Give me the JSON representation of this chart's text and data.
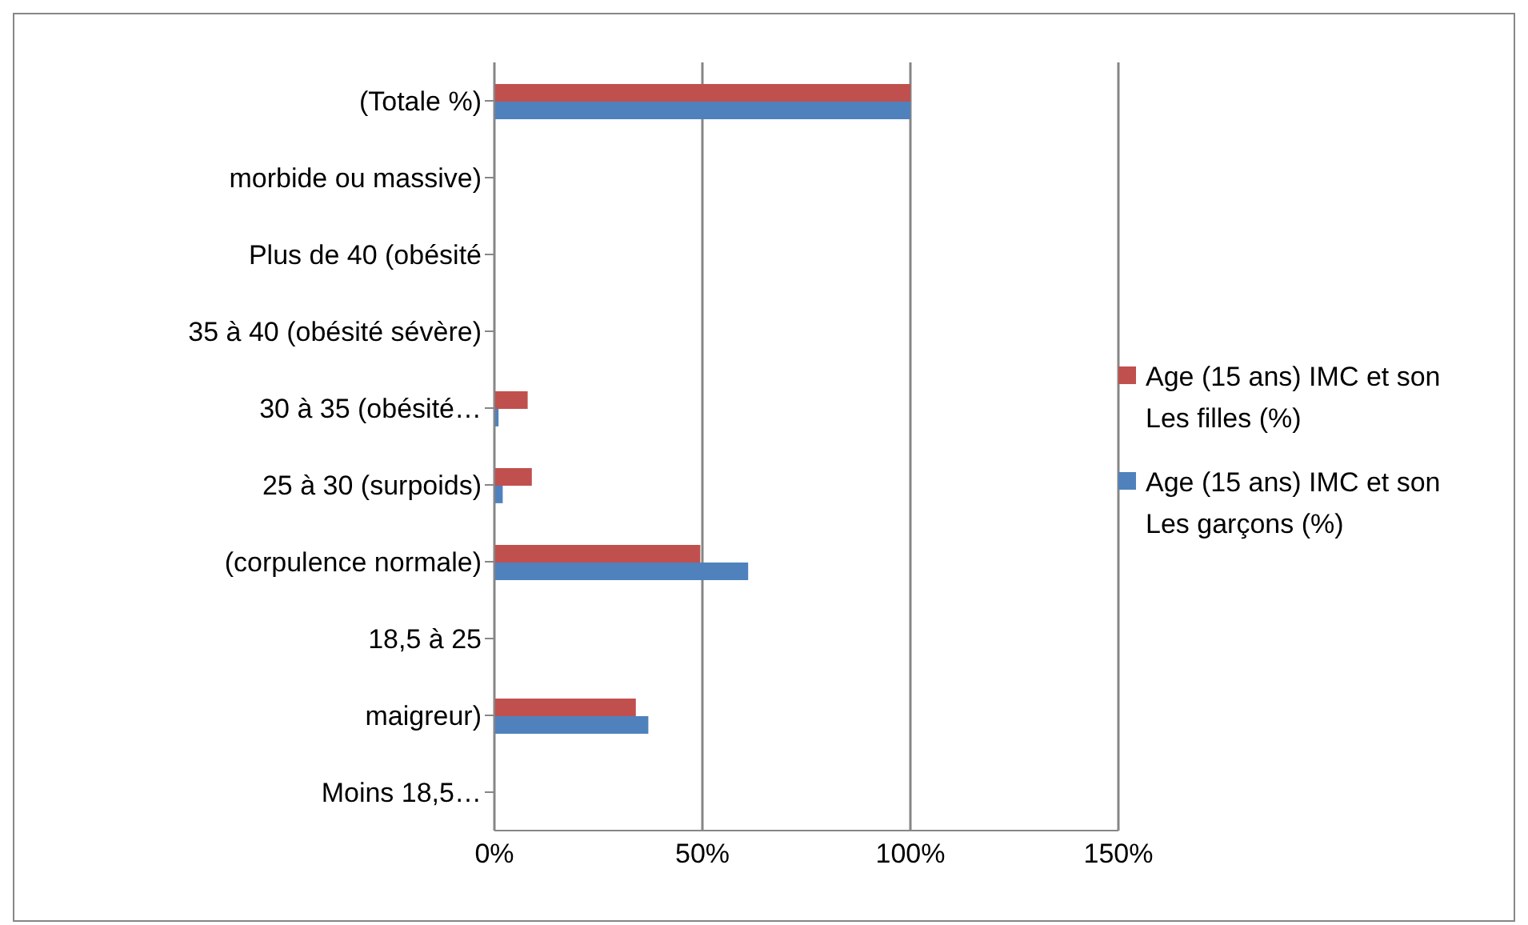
{
  "chart_data": {
    "type": "bar",
    "orientation": "horizontal",
    "categories": [
      "(Totale %)",
      "morbide ou massive)",
      "Plus de 40 (obésité",
      "35 à 40 (obésité sévère)",
      "30 à 35 (obésité…",
      "25 à 30 (surpoids)",
      "(corpulence normale)",
      "18,5 à 25",
      "maigreur)",
      "Moins 18,5…"
    ],
    "series": [
      {
        "name": "Age (15 ans) IMC et son Les filles (%)",
        "color": "#c0504d",
        "values": [
          100,
          null,
          null,
          null,
          8,
          9,
          49.5,
          null,
          34,
          null
        ]
      },
      {
        "name": "Age (15 ans) IMC et son Les garçons (%)",
        "color": "#4f81bd",
        "values": [
          100,
          null,
          null,
          null,
          1,
          2,
          61,
          null,
          37,
          null
        ]
      }
    ],
    "xlim": [
      0,
      150
    ],
    "xticks": [
      {
        "value": 0,
        "label": "0%"
      },
      {
        "value": 50,
        "label": "50%"
      },
      {
        "value": 100,
        "label": "100%"
      },
      {
        "value": 150,
        "label": "150%"
      }
    ],
    "grid": "x",
    "legend": "right"
  }
}
